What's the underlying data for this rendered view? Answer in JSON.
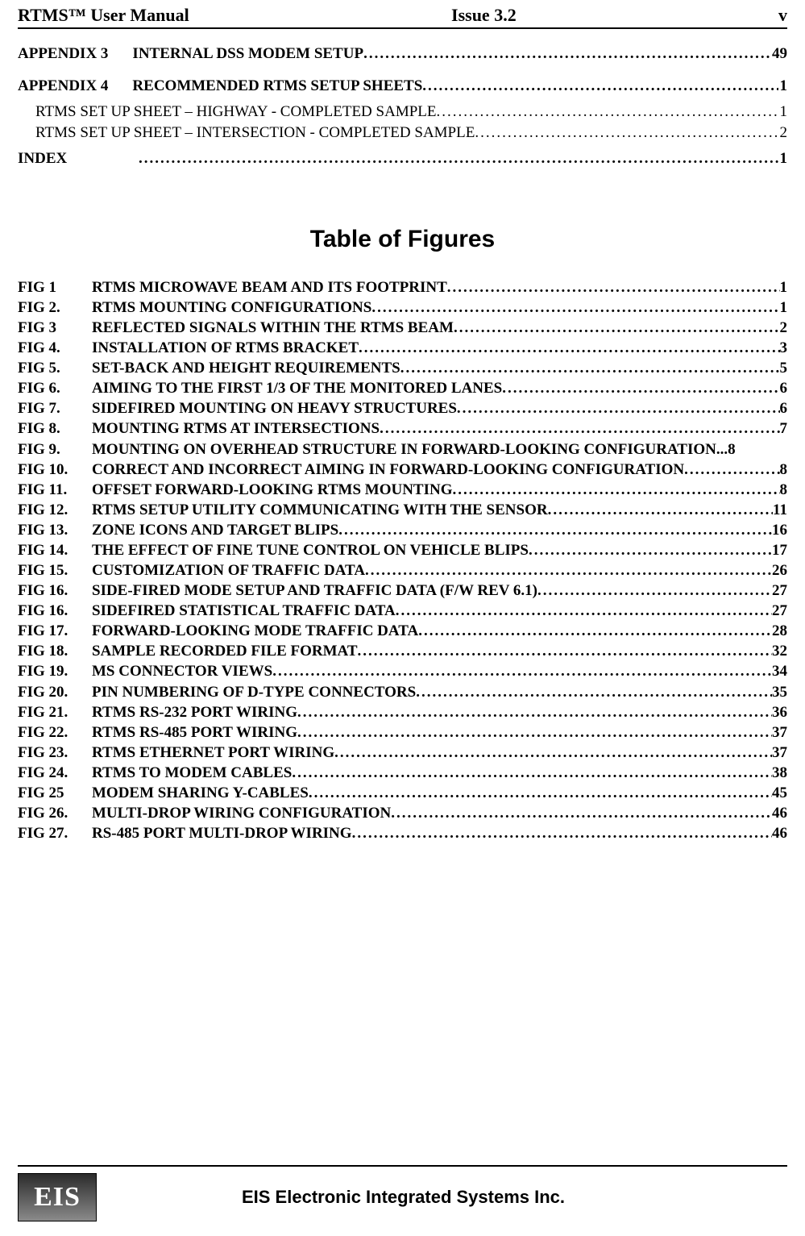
{
  "header": {
    "left": "RTMS™ User Manual",
    "center": "Issue 3.2",
    "right": "v"
  },
  "toc_top": [
    {
      "label": "APPENDIX 3",
      "title": "INTERNAL DSS MODEM SETUP",
      "page": "49"
    },
    {
      "label": "APPENDIX 4",
      "title": "RECOMMENDED RTMS SETUP SHEETS",
      "page": "1"
    }
  ],
  "toc_sub": [
    {
      "title_a": "RTMS SET UP SHEET – HIGHWAY - C",
      "title_b": "OMPLETED SAMPLE",
      "page": "1"
    },
    {
      "title_a": "RTMS SET UP SHEET – INTERSECTION  - C",
      "title_b": "OMPLETED SAMPLE",
      "page": "2"
    }
  ],
  "toc_index": {
    "label": "INDEX",
    "page": "1"
  },
  "figures_heading": "Table of  Figures",
  "figures": [
    {
      "label": "FIG 1",
      "title": "RTMS MICROWAVE BEAM AND ITS FOOTPRINT",
      "page": "1"
    },
    {
      "label": "FIG 2.",
      "title": "RTMS MOUNTING CONFIGURATIONS",
      "page": "1"
    },
    {
      "label": "FIG 3",
      "title": "REFLECTED SIGNALS WITHIN THE RTMS BEAM",
      "page": "2"
    },
    {
      "label": "FIG 4.",
      "title": "INSTALLATION  OF RTMS BRACKET",
      "page": "3"
    },
    {
      "label": "FIG 5.",
      "title": "SET-BACK AND HEIGHT REQUIREMENTS",
      "page": "5"
    },
    {
      "label": "FIG 6.",
      "title": "AIMING TO THE FIRST 1/3 OF THE MONITORED LANES",
      "page": "6"
    },
    {
      "label": "FIG 7.",
      "title": "SIDEFIRED MOUNTING ON HEAVY STRUCTURES",
      "page": "6"
    },
    {
      "label": "FIG 8.",
      "title": "MOUNTING RTMS AT INTERSECTIONS",
      "page": "7"
    },
    {
      "label": "FIG 9.",
      "title": "MOUNTING ON OVERHEAD STRUCTURE IN FORWARD-LOOKING CONFIGURATION.",
      "page": "8",
      "dots_override": " .. "
    },
    {
      "label": "FIG 10.",
      "title": "CORRECT AND INCORRECT AIMING IN FORWARD-LOOKING CONFIGURATION",
      "page": "8"
    },
    {
      "label": "FIG 11.",
      "title": "OFFSET FORWARD-LOOKING RTMS MOUNTING",
      "page": "8"
    },
    {
      "label": "FIG 12.",
      "title": "RTMS SETUP UTILITY COMMUNICATING WITH THE SENSOR",
      "page": "11"
    },
    {
      "label": "FIG 13.",
      "title": "ZONE ICONS AND TARGET BLIPS",
      "page": "16"
    },
    {
      "label": "FIG 14.",
      "title": "THE EFFECT OF FINE TUNE CONTROL ON VEHICLE BLIPS",
      "page": "17"
    },
    {
      "label": "FIG 15.",
      "title": "CUSTOMIZATION OF TRAFFIC DATA",
      "page": "26"
    },
    {
      "label": "FIG 16.",
      "title": "SIDE-FIRED MODE SETUP AND TRAFFIC DATA (F/W REV 6.1)",
      "page": "27"
    },
    {
      "label": "FIG 16.",
      "title": "SIDEFIRED STATISTICAL TRAFFIC DATA",
      "page": "27"
    },
    {
      "label": "FIG 17.",
      "title": "FORWARD-LOOKING MODE TRAFFIC DATA",
      "page": "28"
    },
    {
      "label": "FIG 18.",
      "title": "SAMPLE RECORDED FILE FORMAT",
      "page": "32"
    },
    {
      "label": "FIG 19.",
      "title": "MS CONNECTOR VIEWS",
      "page": "34"
    },
    {
      "label": "FIG 20.",
      "title": "PIN NUMBERING OF D-TYPE CONNECTORS",
      "page": "35"
    },
    {
      "label": "FIG 21.",
      "title": "RTMS RS-232 PORT WIRING",
      "page": "36"
    },
    {
      "label": "FIG 22.",
      "title": "RTMS RS-485 PORT WIRING",
      "page": "37"
    },
    {
      "label": "FIG 23.",
      "title": "RTMS ETHERNET PORT WIRING",
      "page": "37"
    },
    {
      "label": "FIG 24.",
      "title": "RTMS TO MODEM CABLES",
      "page": "38"
    },
    {
      "label": "FIG 25",
      "title": "MODEM SHARING Y-CABLES",
      "page": "45"
    },
    {
      "label": "FIG 26.",
      "title": "MULTI-DROP WIRING CONFIGURATION",
      "page": "46"
    },
    {
      "label": "FIG 27.",
      "title": "RS-485 PORT MULTI-DROP WIRING",
      "page": "46"
    }
  ],
  "footer": {
    "logo_text": "EIS",
    "text": "EIS Electronic Integrated Systems Inc."
  },
  "style": {
    "dot_fill": "............................................................................................................................................................................................................................................"
  }
}
